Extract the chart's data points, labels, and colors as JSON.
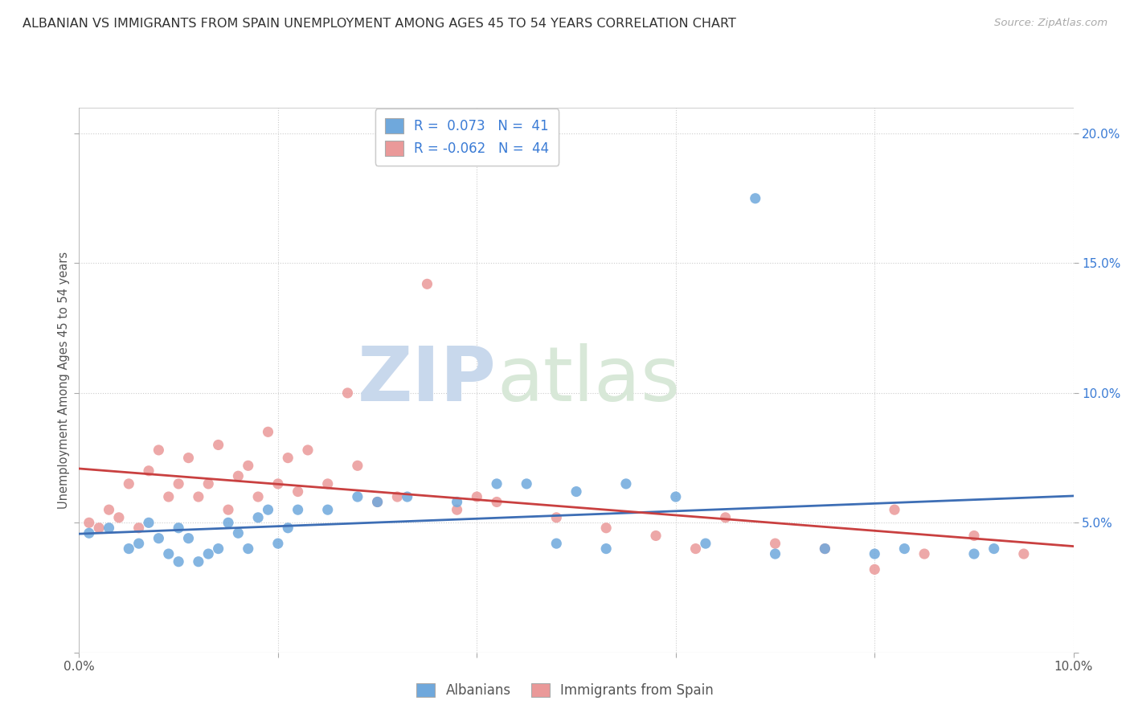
{
  "title": "ALBANIAN VS IMMIGRANTS FROM SPAIN UNEMPLOYMENT AMONG AGES 45 TO 54 YEARS CORRELATION CHART",
  "source": "Source: ZipAtlas.com",
  "ylabel": "Unemployment Among Ages 45 to 54 years",
  "xlim": [
    0.0,
    0.1
  ],
  "ylim": [
    0.0,
    0.21
  ],
  "r_albanian": 0.073,
  "n_albanian": 41,
  "r_spain": -0.062,
  "n_spain": 44,
  "legend_labels": [
    "Albanians",
    "Immigrants from Spain"
  ],
  "color_albanian": "#6fa8dc",
  "color_spain": "#ea9999",
  "trendline_color_albanian": "#3d6eb5",
  "trendline_color_spain": "#c94040",
  "bg_color": "#ffffff",
  "grid_color": "#cccccc",
  "albanians_x": [
    0.001,
    0.003,
    0.005,
    0.006,
    0.007,
    0.008,
    0.009,
    0.01,
    0.01,
    0.011,
    0.012,
    0.013,
    0.014,
    0.015,
    0.016,
    0.017,
    0.018,
    0.019,
    0.02,
    0.021,
    0.022,
    0.025,
    0.028,
    0.03,
    0.033,
    0.038,
    0.042,
    0.045,
    0.048,
    0.05,
    0.053,
    0.055,
    0.06,
    0.063,
    0.07,
    0.075,
    0.08,
    0.083,
    0.09,
    0.092,
    0.068
  ],
  "albanians_y": [
    0.046,
    0.048,
    0.04,
    0.042,
    0.05,
    0.044,
    0.038,
    0.035,
    0.048,
    0.044,
    0.035,
    0.038,
    0.04,
    0.05,
    0.046,
    0.04,
    0.052,
    0.055,
    0.042,
    0.048,
    0.055,
    0.055,
    0.06,
    0.058,
    0.06,
    0.058,
    0.065,
    0.065,
    0.042,
    0.062,
    0.04,
    0.065,
    0.06,
    0.042,
    0.038,
    0.04,
    0.038,
    0.04,
    0.038,
    0.04,
    0.175
  ],
  "spain_x": [
    0.001,
    0.002,
    0.003,
    0.004,
    0.005,
    0.006,
    0.007,
    0.008,
    0.009,
    0.01,
    0.011,
    0.012,
    0.013,
    0.014,
    0.015,
    0.016,
    0.017,
    0.018,
    0.019,
    0.02,
    0.021,
    0.022,
    0.023,
    0.025,
    0.027,
    0.028,
    0.03,
    0.032,
    0.035,
    0.038,
    0.04,
    0.042,
    0.048,
    0.053,
    0.058,
    0.062,
    0.065,
    0.07,
    0.075,
    0.08,
    0.082,
    0.085,
    0.09,
    0.095
  ],
  "spain_y": [
    0.05,
    0.048,
    0.055,
    0.052,
    0.065,
    0.048,
    0.07,
    0.078,
    0.06,
    0.065,
    0.075,
    0.06,
    0.065,
    0.08,
    0.055,
    0.068,
    0.072,
    0.06,
    0.085,
    0.065,
    0.075,
    0.062,
    0.078,
    0.065,
    0.1,
    0.072,
    0.058,
    0.06,
    0.142,
    0.055,
    0.06,
    0.058,
    0.052,
    0.048,
    0.045,
    0.04,
    0.052,
    0.042,
    0.04,
    0.032,
    0.055,
    0.038,
    0.045,
    0.038
  ]
}
